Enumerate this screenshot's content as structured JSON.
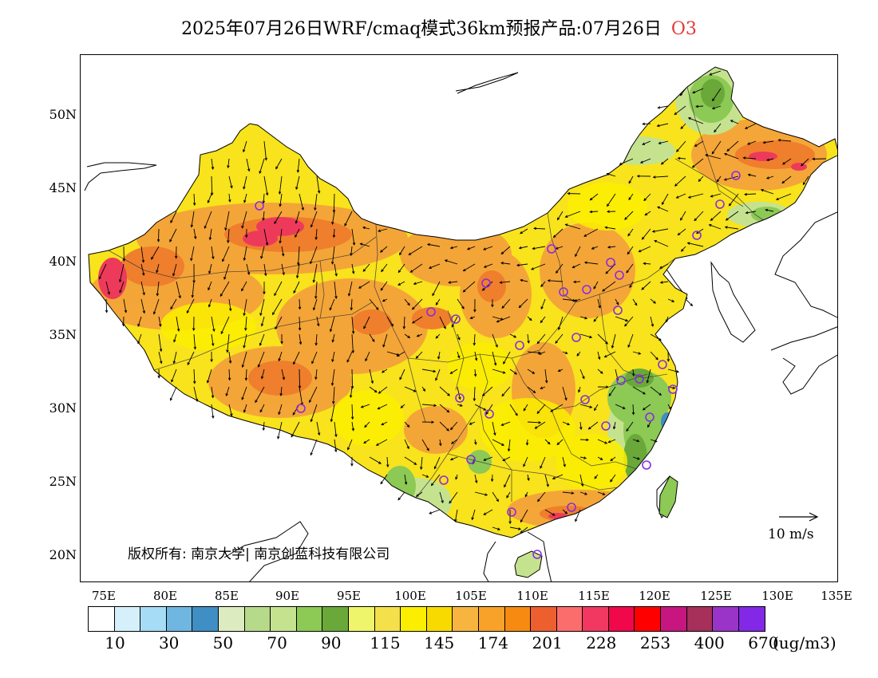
{
  "title": {
    "main": "2025年07月26日WRF/cmaq模式36km预报产品:07月26日",
    "species": "O3"
  },
  "axes": {
    "y_ticks": [
      "50N",
      "45N",
      "40N",
      "35N",
      "30N",
      "25N",
      "20N"
    ],
    "x_ticks": [
      "75E",
      "80E",
      "85E",
      "90E",
      "95E",
      "100E",
      "105E",
      "110E",
      "115E",
      "120E",
      "125E",
      "130E",
      "135E"
    ],
    "lon_range": [
      73,
      135
    ],
    "lat_range": [
      18,
      54
    ]
  },
  "copyright": "版权所有: 南京大学| 南京创蓝科技有限公司",
  "wind_reference": "10 m/s",
  "colorbar": {
    "colors": [
      "#ffffff",
      "#d6f0fb",
      "#a6dcf5",
      "#6fb6e0",
      "#3f8ec4",
      "#dcebc0",
      "#b7d98a",
      "#c5e38f",
      "#8cc955",
      "#6aa83a",
      "#eef56a",
      "#f4e04a",
      "#fbee00",
      "#f9da00",
      "#f7b540",
      "#f8a22a",
      "#f78a10",
      "#ee5f30",
      "#fb6d6d",
      "#f23860",
      "#f0084a",
      "#ff0000",
      "#c81680",
      "#a6305a",
      "#9a34c8",
      "#8428e8"
    ],
    "labels": [
      "10",
      "30",
      "50",
      "70",
      "90",
      "115",
      "145",
      "174",
      "201",
      "228",
      "253",
      "400",
      "670"
    ],
    "unit": "(ug/m3)"
  },
  "map_colors": {
    "base": "#f8e31c",
    "orange": "#f4a23a",
    "darkorange": "#ef7f2c",
    "red": "#ee3a5a",
    "green": "#8cc955",
    "darkgreen": "#6aa83a",
    "lightgreen": "#c5e38f",
    "blue": "#3f8ec4",
    "site_marker": "#8a2be2"
  },
  "icons": {
    "wind_arrow": "wind-arrow-icon",
    "site": "monitoring-site-icon"
  }
}
